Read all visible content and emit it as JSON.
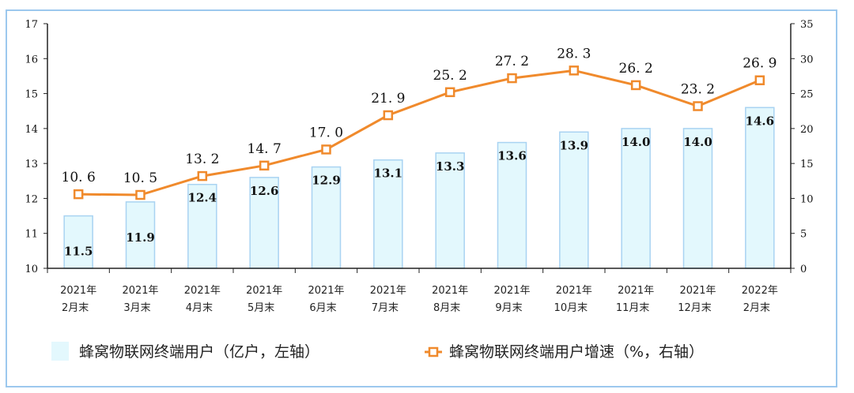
{
  "chart_data": {
    "type": "bar+line",
    "categories": [
      "2021年\n2月末",
      "2021年\n3月末",
      "2021年\n4月末",
      "2021年\n5月末",
      "2021年\n6月末",
      "2021年\n7月末",
      "2021年\n8月末",
      "2021年\n9月末",
      "2021年\n10月末",
      "2021年\n11月末",
      "2021年\n12月末",
      "2022年\n2月末"
    ],
    "series": [
      {
        "name": "蜂窝物联网终端用户（亿户，左轴）",
        "type": "bar",
        "axis": "left",
        "color": "#e3f8fd",
        "values": [
          11.5,
          11.9,
          12.4,
          12.6,
          12.9,
          13.1,
          13.3,
          13.6,
          13.9,
          14.0,
          14.0,
          14.6
        ],
        "labels": [
          "11.5",
          "11.9",
          "12.4",
          "12.6",
          "12.9",
          "13.1",
          "13.3",
          "13.6",
          "13.9",
          "14.0",
          "14.0",
          "14.6"
        ]
      },
      {
        "name": "蜂窝物联网终端用户增速（%，右轴）",
        "type": "line",
        "axis": "right",
        "color": "#f08a2c",
        "values": [
          10.6,
          10.5,
          13.2,
          14.7,
          17.0,
          21.9,
          25.2,
          27.2,
          28.3,
          26.2,
          23.2,
          26.9
        ],
        "labels": [
          "10.6",
          "10.5",
          "13.2",
          "14.7",
          "17.0",
          "21.9",
          "25.2",
          "27.2",
          "28.3",
          "26.2",
          "23.2",
          "26.9"
        ]
      }
    ],
    "yleft": {
      "range": [
        10,
        17
      ],
      "ticks": [
        "10",
        "11",
        "12",
        "13",
        "14",
        "15",
        "16",
        "17"
      ]
    },
    "yright": {
      "range": [
        0,
        35
      ],
      "ticks": [
        "0",
        "5",
        "10",
        "15",
        "20",
        "25",
        "30",
        "35"
      ]
    },
    "grid": false,
    "legend_position": "bottom"
  }
}
